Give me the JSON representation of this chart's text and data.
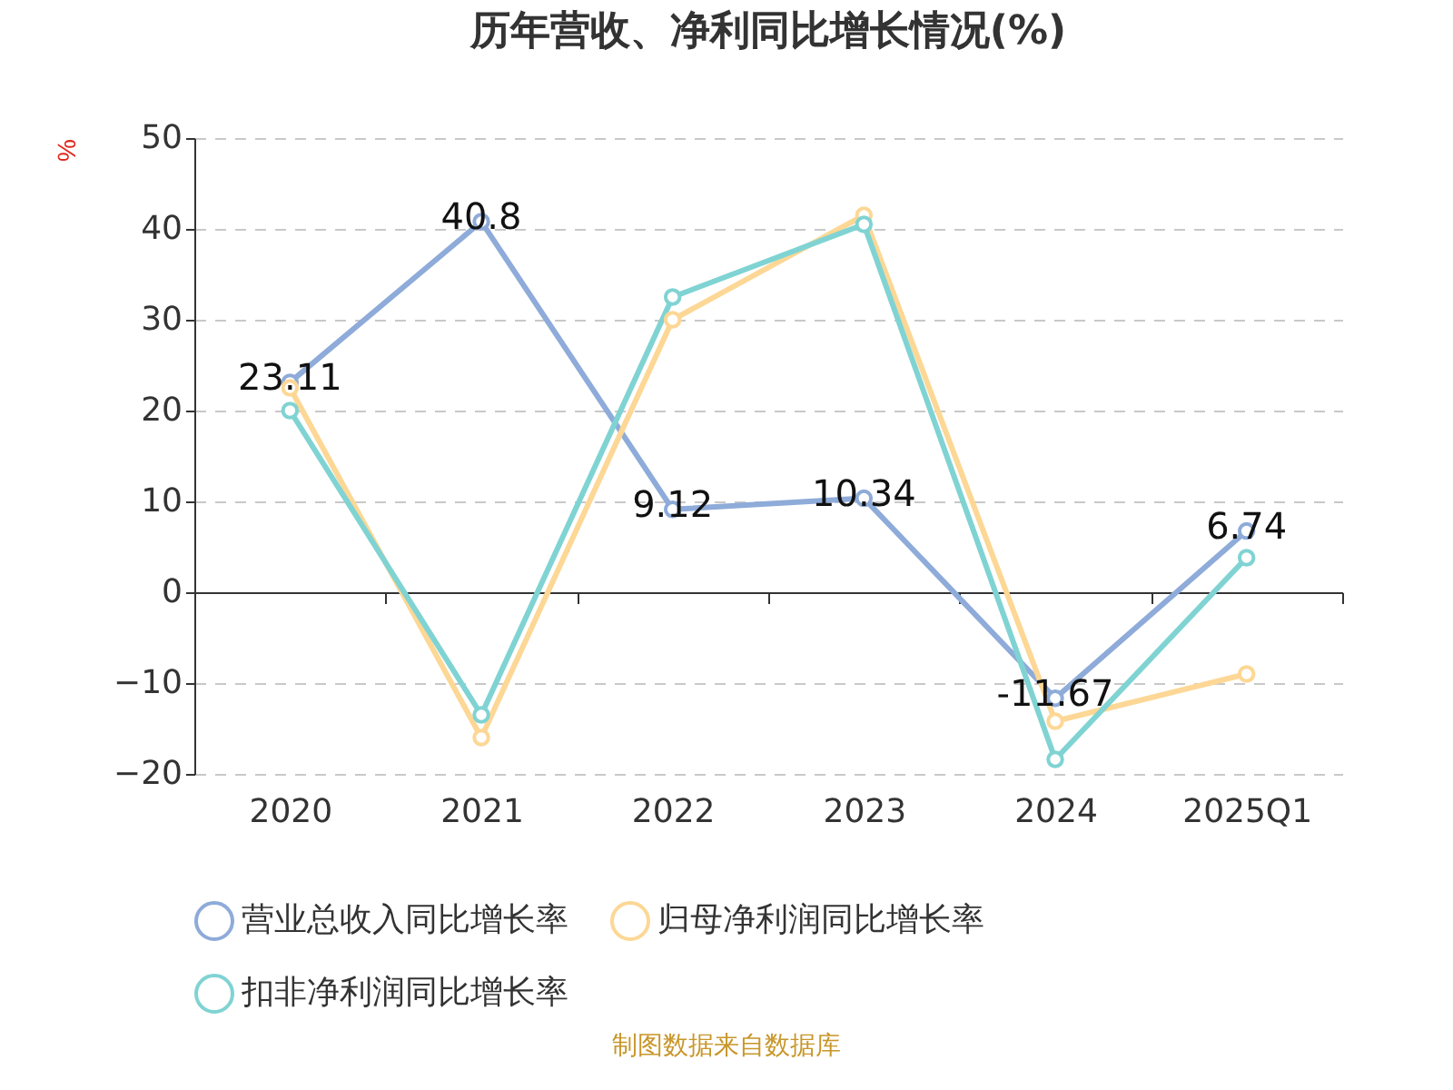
{
  "chart_data": {
    "type": "line",
    "title": "历年营收、净利同比增长情况(%)",
    "ylabel": "%",
    "categories": [
      "2020",
      "2021",
      "2022",
      "2023",
      "2024",
      "2025Q1"
    ],
    "series": [
      {
        "name": "营业总收入同比增长率",
        "color": "#8eabd9",
        "values": [
          23.11,
          40.8,
          9.12,
          10.34,
          -11.67,
          6.74
        ],
        "value_labels": [
          "23.11",
          "40.8",
          "9.12",
          "10.34",
          "-11.67",
          "6.74"
        ]
      },
      {
        "name": "归母净利润同比增长率",
        "color": "#fdd795",
        "values": [
          22.5,
          -16,
          30,
          41.5,
          -14.2,
          -9
        ]
      },
      {
        "name": "扣非净利润同比增长率",
        "color": "#80d3d3",
        "values": [
          20,
          -13.5,
          32.5,
          40.5,
          -18.4,
          3.8
        ]
      }
    ],
    "ylim": [
      -20,
      50
    ],
    "yticks": [
      -20,
      -10,
      0,
      10,
      20,
      30,
      40,
      50
    ],
    "grid": "y",
    "legend": "bottom",
    "marker": "circle",
    "line_style": "solid",
    "annotations": [
      "制图数据来自数据库"
    ]
  }
}
